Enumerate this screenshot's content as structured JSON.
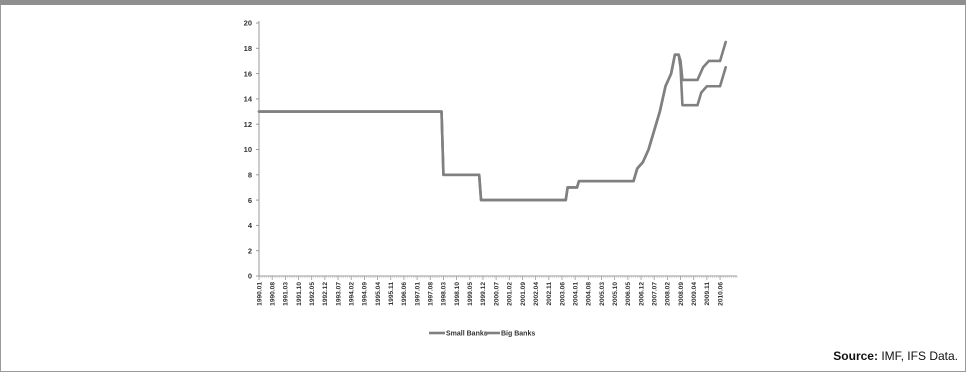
{
  "source": {
    "label": "Source:",
    "text": "IMF, IFS Data."
  },
  "colors": {
    "series": "#808080",
    "axis": "#9a9a9a",
    "frame": "#9a9a9a"
  },
  "chart_data": {
    "type": "line",
    "title": "",
    "xlabel": "",
    "ylabel": "",
    "ylim": [
      0,
      20
    ],
    "yticks": [
      0,
      2,
      4,
      6,
      8,
      10,
      12,
      14,
      16,
      18,
      20
    ],
    "grid": false,
    "legend_position": "bottom",
    "x_range": [
      "1990.01",
      "2011.03"
    ],
    "x_tick_labels": [
      "1990.01",
      "1990.08",
      "1991.03",
      "1991.10",
      "1992.05",
      "1992.12",
      "1993.07",
      "1994.02",
      "1994.09",
      "1995.04",
      "1995.11",
      "1996.06",
      "1997.01",
      "1997.08",
      "1998.03",
      "1998.10",
      "1999.05",
      "1999.12",
      "2000.07",
      "2001.02",
      "2001.09",
      "2002.04",
      "2002.11",
      "2003.06",
      "2004.01",
      "2004.08",
      "2005.03",
      "2005.10",
      "2006.05",
      "2006.12",
      "2007.07",
      "2008.02",
      "2008.09",
      "2009.04",
      "2009.11",
      "2010.06"
    ],
    "series": [
      {
        "name": "Small Banks",
        "points": [
          [
            "1990.01",
            13
          ],
          [
            "1998.02",
            13
          ],
          [
            "1998.03",
            8
          ],
          [
            "1999.10",
            8
          ],
          [
            "1999.11",
            6
          ],
          [
            "2003.08",
            6
          ],
          [
            "2003.09",
            7
          ],
          [
            "2004.02",
            7
          ],
          [
            "2004.03",
            7.5
          ],
          [
            "2006.08",
            7.5
          ],
          [
            "2006.10",
            8.5
          ],
          [
            "2007.01",
            9
          ],
          [
            "2007.04",
            10
          ],
          [
            "2007.07",
            11.5
          ],
          [
            "2007.10",
            13
          ],
          [
            "2008.01",
            15
          ],
          [
            "2008.04",
            16
          ],
          [
            "2008.06",
            17.5
          ],
          [
            "2008.08",
            17.5
          ],
          [
            "2008.09",
            16.5
          ],
          [
            "2008.10",
            13.5
          ],
          [
            "2009.05",
            13.5
          ],
          [
            "2009.06",
            13.5
          ],
          [
            "2009.08",
            14.5
          ],
          [
            "2009.11",
            15
          ],
          [
            "2010.06",
            15
          ],
          [
            "2010.09",
            16.5
          ]
        ]
      },
      {
        "name": "Big Banks",
        "points": [
          [
            "1990.01",
            13
          ],
          [
            "1998.02",
            13
          ],
          [
            "1998.03",
            8
          ],
          [
            "1999.10",
            8
          ],
          [
            "1999.11",
            6
          ],
          [
            "2003.08",
            6
          ],
          [
            "2003.09",
            7
          ],
          [
            "2004.02",
            7
          ],
          [
            "2004.03",
            7.5
          ],
          [
            "2006.08",
            7.5
          ],
          [
            "2006.10",
            8.5
          ],
          [
            "2007.01",
            9
          ],
          [
            "2007.04",
            10
          ],
          [
            "2007.07",
            11.5
          ],
          [
            "2007.10",
            13
          ],
          [
            "2008.01",
            15
          ],
          [
            "2008.04",
            16
          ],
          [
            "2008.06",
            17.5
          ],
          [
            "2008.08",
            17.5
          ],
          [
            "2008.09",
            17
          ],
          [
            "2008.10",
            15.5
          ],
          [
            "2009.06",
            15.5
          ],
          [
            "2009.09",
            16.5
          ],
          [
            "2009.12",
            17
          ],
          [
            "2010.06",
            17
          ],
          [
            "2010.09",
            18.5
          ]
        ]
      }
    ]
  }
}
